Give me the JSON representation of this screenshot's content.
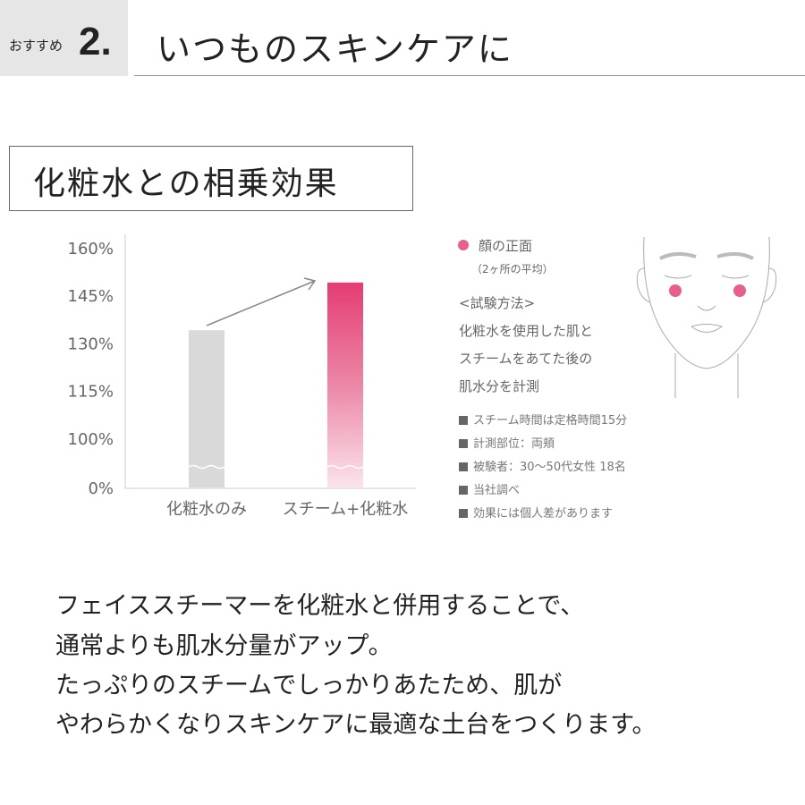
{
  "header": {
    "badge_label": "おすすめ",
    "badge_number": "2.",
    "title": "いつものスキンケアに"
  },
  "subtitle": "化粧水との相乗効果",
  "chart_data": {
    "type": "bar",
    "categories": [
      "化粧水のみ",
      "スチーム+化粧水"
    ],
    "values": [
      134,
      149
    ],
    "yticks": [
      "0%",
      "100%",
      "115%",
      "130%",
      "145%",
      "160%"
    ],
    "ytick_values": [
      0,
      100,
      115,
      130,
      145,
      160
    ],
    "axis_break": "between 0% and 100%",
    "ylim": [
      0,
      160
    ],
    "colors": [
      "#d9d9d9",
      "#e43d73"
    ],
    "grid": false
  },
  "legend": {
    "dot_color": "#e8608a",
    "label": "顔の正面",
    "note": "（2ヶ所の平均）"
  },
  "method": {
    "heading": "<試験方法>",
    "lines": [
      "化粧水を使用した肌と",
      "スチームをあてた後の",
      "肌水分を計測"
    ]
  },
  "notes": [
    "スチーム時間は定格時間15分",
    "計測部位：両頬",
    "被験者：30〜50代女性 18名",
    "当社調べ",
    "効果には個人差があります"
  ],
  "body": [
    "フェイススチーマーを化粧水と併用することで、",
    "通常よりも肌水分量がアップ。",
    "たっぷりのスチームでしっかりあたため、肌が",
    "やわらかくなりスキンケアに最適な土台をつくります。"
  ]
}
